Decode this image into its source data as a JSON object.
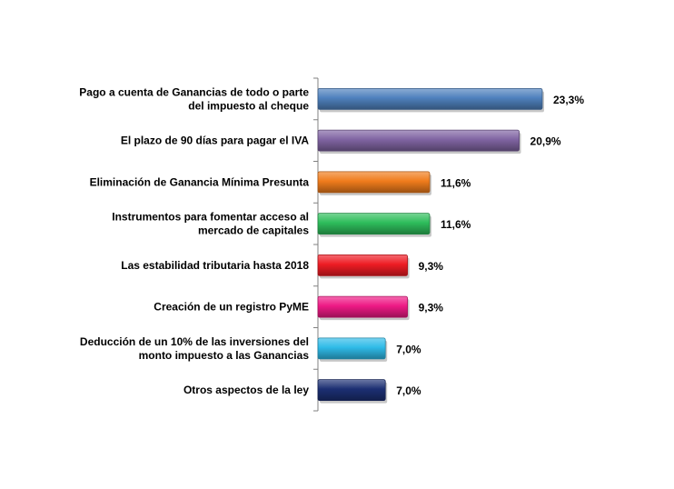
{
  "chart_data": {
    "type": "bar",
    "orientation": "horizontal",
    "categories": [
      [
        "Pago a cuenta de Ganancias de todo o parte",
        "del impuesto al cheque"
      ],
      [
        "El plazo de 90 días para pagar el IVA"
      ],
      [
        "Eliminación de Ganancia Mínima Presunta"
      ],
      [
        "Instrumentos para fomentar acceso al",
        "mercado de capitales"
      ],
      [
        "Las estabilidad tributaria hasta 2018"
      ],
      [
        "Creación de un registro PyME"
      ],
      [
        "Deducción de un 10% de las inversiones del",
        "monto impuesto a las Ganancias"
      ],
      [
        "Otros aspectos de la ley"
      ]
    ],
    "values": [
      23.3,
      20.9,
      11.6,
      11.6,
      9.3,
      9.3,
      7.0,
      7.0
    ],
    "value_labels": [
      "23,3%",
      "20,9%",
      "11,6%",
      "11,6%",
      "9,3%",
      "9,3%",
      "7,0%",
      "7,0%"
    ],
    "colors": [
      "#4f81bd",
      "#8064a2",
      "#f07c1c",
      "#2ebd5b",
      "#ee1c24",
      "#ee1a85",
      "#2fbbe8",
      "#1c2f73"
    ],
    "xlim": [
      0,
      30
    ],
    "grid": false,
    "legend": "none",
    "title": "",
    "xlabel": "",
    "ylabel": ""
  }
}
